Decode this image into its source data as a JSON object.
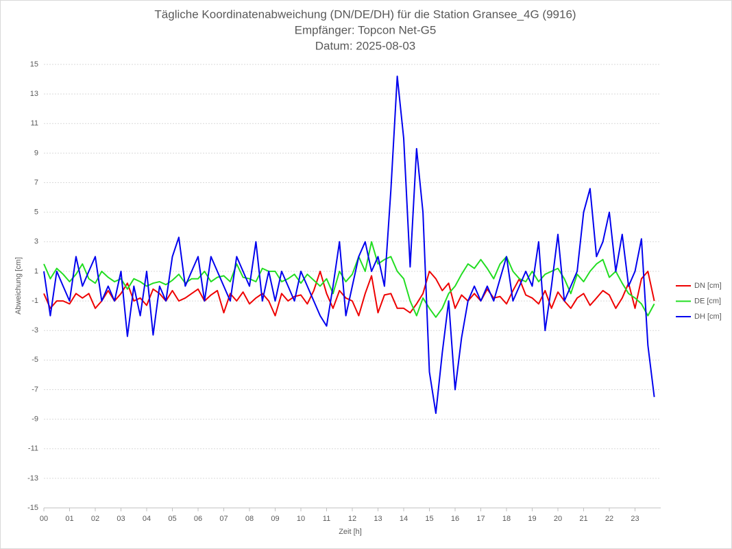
{
  "chart_data": {
    "type": "line",
    "title": [
      "Tägliche Koordinatenabweichung (DN/DE/DH) für die Station Gransee_4G (9916)",
      "Empfänger: Topcon Net-G5",
      "Datum: 2025-08-03"
    ],
    "xlabel": "Zeit [h]",
    "ylabel": "Abweichung [cm]",
    "x": [
      0,
      0.25,
      0.5,
      0.75,
      1,
      1.25,
      1.5,
      1.75,
      2,
      2.25,
      2.5,
      2.75,
      3,
      3.25,
      3.5,
      3.75,
      4,
      4.25,
      4.5,
      4.75,
      5,
      5.25,
      5.5,
      5.75,
      6,
      6.25,
      6.5,
      6.75,
      7,
      7.25,
      7.5,
      7.75,
      8,
      8.25,
      8.5,
      8.75,
      9,
      9.25,
      9.5,
      9.75,
      10,
      10.25,
      10.5,
      10.75,
      11,
      11.25,
      11.5,
      11.75,
      12,
      12.25,
      12.5,
      12.75,
      13,
      13.25,
      13.5,
      13.75,
      14,
      14.25,
      14.5,
      14.75,
      15,
      15.25,
      15.5,
      15.75,
      16,
      16.25,
      16.5,
      16.75,
      17,
      17.25,
      17.5,
      17.75,
      18,
      18.25,
      18.5,
      18.75,
      19,
      19.25,
      19.5,
      19.75,
      20,
      20.25,
      20.5,
      20.75,
      21,
      21.25,
      21.5,
      21.75,
      22,
      22.25,
      22.5,
      22.75,
      23,
      23.25,
      23.5,
      23.75
    ],
    "series": [
      {
        "name": "DN [cm]",
        "color": "#ee0000",
        "values": [
          -0.5,
          -1.5,
          -1,
          -1,
          -1.2,
          -0.5,
          -0.8,
          -0.5,
          -1.5,
          -1,
          -0.3,
          -1,
          -0.5,
          0.2,
          -1,
          -0.8,
          -1.3,
          -0.2,
          -0.5,
          -1,
          -0.3,
          -1,
          -0.8,
          -0.5,
          -0.2,
          -1,
          -0.6,
          -0.3,
          -1.8,
          -0.5,
          -1,
          -0.4,
          -1.2,
          -0.8,
          -0.5,
          -1,
          -2,
          -0.5,
          -1,
          -0.7,
          -0.6,
          -1.2,
          -0.3,
          1,
          -0.5,
          -1.5,
          -0.3,
          -0.8,
          -1,
          -2,
          -0.5,
          0.7,
          -1.8,
          -0.6,
          -0.5,
          -1.5,
          -1.5,
          -1.8,
          -1.2,
          -0.5,
          1,
          0.5,
          -0.3,
          0.2,
          -1.5,
          -0.6,
          -1,
          -0.5,
          -1,
          -0.2,
          -0.8,
          -0.7,
          -1.2,
          -0.3,
          0.5,
          -0.6,
          -0.8,
          -1.2,
          -0.3,
          -1.5,
          -0.4,
          -1,
          -1.5,
          -0.8,
          -0.5,
          -1.3,
          -0.8,
          -0.3,
          -0.6,
          -1.5,
          -0.8,
          0.2,
          -1.5,
          0.5,
          1,
          -1
        ]
      },
      {
        "name": "DE [cm]",
        "color": "#22dd22",
        "values": [
          1.5,
          0.5,
          1.2,
          0.8,
          0.3,
          0.8,
          1.5,
          0.5,
          0.2,
          1,
          0.6,
          0.3,
          0.5,
          -0.2,
          0.5,
          0.3,
          0,
          0.2,
          0.3,
          0.1,
          0.4,
          0.8,
          0.2,
          0.5,
          0.5,
          1,
          0.3,
          0.6,
          0.7,
          0.3,
          1.5,
          0.6,
          0.5,
          0.3,
          1.2,
          1,
          1,
          0.3,
          0.5,
          0.8,
          0.2,
          0.8,
          0.4,
          0,
          0.5,
          -0.5,
          1,
          0.3,
          0.8,
          2,
          1,
          3,
          1.5,
          1.8,
          2,
          1,
          0.5,
          -1,
          -2,
          -0.8,
          -1.5,
          -2.1,
          -1.5,
          -0.5,
          0,
          0.8,
          1.5,
          1.2,
          1.8,
          1.2,
          0.5,
          1.5,
          2,
          1,
          0.5,
          0.3,
          1,
          0.3,
          0.8,
          1,
          1.2,
          0.5,
          -0.5,
          0.8,
          0.3,
          1,
          1.5,
          1.8,
          0.6,
          1,
          0.2,
          -0.5,
          -0.8,
          -1.2,
          -2,
          -1.2
        ]
      },
      {
        "name": "DH [cm]",
        "color": "#0000ee",
        "values": [
          1,
          -2,
          1,
          0,
          -1,
          2,
          0,
          1,
          2,
          -1,
          0,
          -1,
          1,
          -3.4,
          0,
          -2,
          1,
          -3.3,
          0,
          -1,
          2,
          3.3,
          0,
          1,
          2,
          -1,
          2,
          1,
          0,
          -1,
          2,
          1,
          0,
          3,
          -1,
          1,
          -1,
          1,
          0,
          -1,
          1,
          0,
          -1,
          -2,
          -2.7,
          0,
          3,
          -2,
          0,
          2,
          3,
          1,
          2,
          0,
          6.5,
          14.2,
          10,
          1.3,
          9.3,
          5,
          -5.8,
          -8.6,
          -4.5,
          -1,
          -7,
          -3.5,
          -1,
          0,
          -1,
          0,
          -1,
          0.5,
          2,
          -1,
          0,
          1,
          0,
          3,
          -3,
          0,
          3.5,
          -1,
          0,
          1,
          5,
          6.6,
          2,
          3,
          5,
          1,
          3.5,
          0,
          1,
          3.2,
          -4,
          -7.5
        ]
      }
    ],
    "xlim": [
      0,
      24
    ],
    "xticks": [
      {
        "value": 0,
        "label": "00"
      },
      {
        "value": 1,
        "label": "01"
      },
      {
        "value": 2,
        "label": "02"
      },
      {
        "value": 3,
        "label": "03"
      },
      {
        "value": 4,
        "label": "04"
      },
      {
        "value": 5,
        "label": "05"
      },
      {
        "value": 6,
        "label": "06"
      },
      {
        "value": 7,
        "label": "07"
      },
      {
        "value": 8,
        "label": "08"
      },
      {
        "value": 9,
        "label": "09"
      },
      10,
      11,
      12,
      13,
      14,
      15,
      16,
      17,
      18,
      19,
      20,
      21,
      22,
      23
    ],
    "ylim": [
      -15,
      15
    ],
    "yticks": [
      -15,
      -13,
      -11,
      -9,
      -7,
      -5,
      -3,
      -1,
      1,
      3,
      5,
      7,
      9,
      11,
      13,
      15
    ],
    "grid": true,
    "legend": "right"
  }
}
